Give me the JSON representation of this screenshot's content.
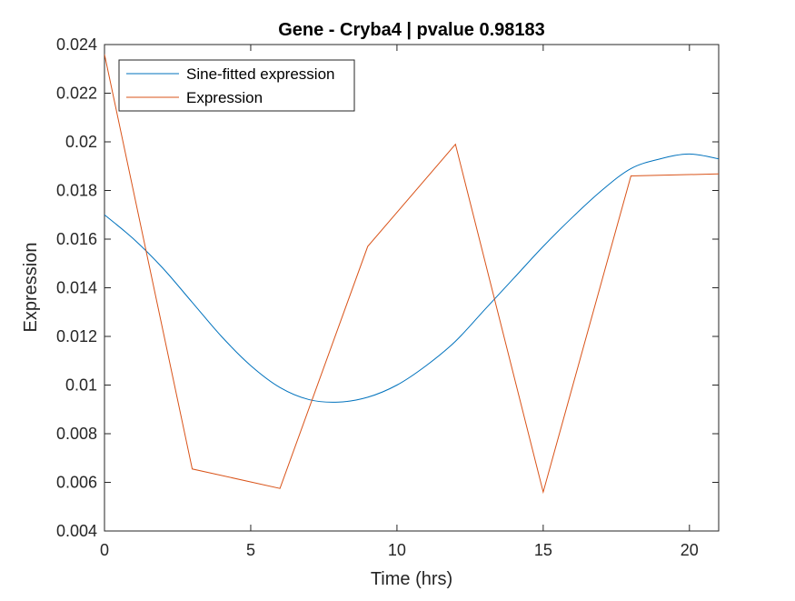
{
  "chart_data": {
    "type": "line",
    "title": "Gene - Cryba4 | pvalue 0.98183",
    "xlabel": "Time (hrs)",
    "ylabel": "Expression",
    "xlim": [
      0,
      21
    ],
    "ylim": [
      0.004,
      0.024
    ],
    "xticks": [
      0,
      5,
      10,
      15,
      20
    ],
    "xtick_labels": [
      "0",
      "5",
      "10",
      "15",
      "20"
    ],
    "yticks": [
      0.004,
      0.006,
      0.008,
      0.01,
      0.012,
      0.014,
      0.016,
      0.018,
      0.02,
      0.022,
      0.024
    ],
    "ytick_labels": [
      "0.004",
      "0.006",
      "0.008",
      "0.01",
      "0.012",
      "0.014",
      "0.016",
      "0.018",
      "0.02",
      "0.022",
      "0.024"
    ],
    "grid": false,
    "legend_position": "top-left",
    "series": [
      {
        "name": "Sine-fitted expression",
        "color": "#0072BD",
        "style": "smooth",
        "x": [
          0,
          1,
          2,
          3,
          4,
          5,
          6,
          7,
          8,
          9,
          10,
          11,
          12,
          13,
          14,
          15,
          16,
          17,
          18,
          19,
          20,
          21
        ],
        "y": [
          0.017,
          0.016,
          0.0148,
          0.0134,
          0.012,
          0.0108,
          0.0099,
          0.0094,
          0.0093,
          0.0095,
          0.01,
          0.0108,
          0.0118,
          0.0131,
          0.0144,
          0.0157,
          0.0169,
          0.018,
          0.0189,
          0.0193,
          0.0195,
          0.0193
        ]
      },
      {
        "name": "Expression",
        "color": "#D95319",
        "style": "linear",
        "x": [
          0,
          3,
          6,
          9,
          12,
          15,
          18,
          21
        ],
        "y": [
          0.0236,
          0.00655,
          0.00575,
          0.0157,
          0.0199,
          0.0056,
          0.0186,
          0.01868
        ]
      }
    ]
  }
}
